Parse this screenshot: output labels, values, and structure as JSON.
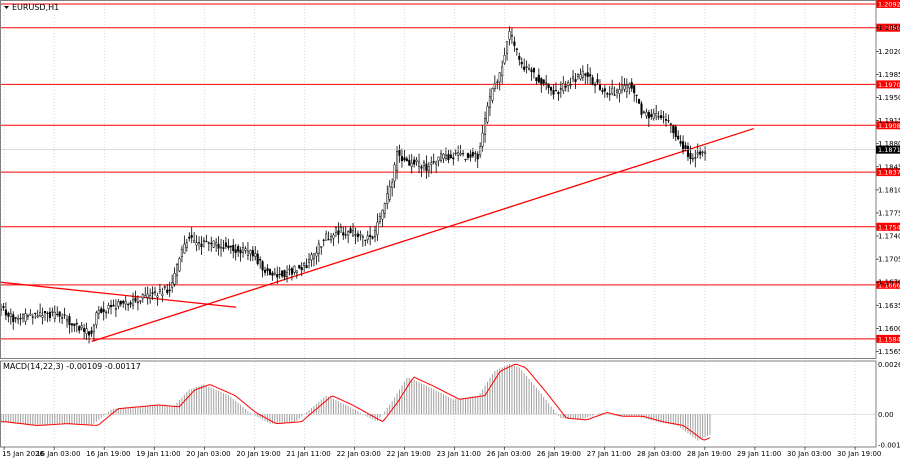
{
  "chart_data": {
    "type": "candlestick",
    "symbol_label": "EURUSD,H1",
    "colors": {
      "candle": "#000000",
      "level": "#ff0000",
      "level_label_bg": "#ff0000",
      "grid": "#c0c0c0",
      "macd_hist": "#a0a0a0",
      "macd_signal": "#ff0000",
      "current_bg": "#000000"
    },
    "price_axis": {
      "ylim": [
        1.1555,
        1.2098
      ],
      "ticks": [
        "1.2056",
        "1.2020",
        "1.1985",
        "1.1950",
        "1.1915",
        "1.1880",
        "1.1845",
        "1.1810",
        "1.1775",
        "1.1740",
        "1.1705",
        "1.1670",
        "1.1635",
        "1.1600",
        "1.1565"
      ]
    },
    "current_price": "1.1871",
    "levels": [
      "1.2092",
      "1.2056",
      "1.1970",
      "1.1908",
      "1.1837",
      "1.1754",
      "1.1666",
      "1.1584"
    ],
    "level_values": [
      1.2092,
      1.2056,
      1.197,
      1.1908,
      1.1837,
      1.1754,
      1.1666,
      1.1584
    ],
    "trend_lines": [
      {
        "x": [
          90,
          740
        ],
        "y": [
          1.158,
          1.1903
        ]
      },
      {
        "x": [
          0,
          232
        ],
        "y": [
          1.167,
          1.1632
        ]
      }
    ],
    "time_axis": {
      "labels": [
        "15 Jan 2026",
        "16 Jan 03:00",
        "16 Jan 19:00",
        "19 Jan 11:00",
        "20 Jan 03:00",
        "20 Jan 19:00",
        "21 Jan 11:00",
        "22 Jan 03:00",
        "22 Jan 19:00",
        "23 Jan 11:00",
        "26 Jan 03:00",
        "26 Jan 19:00",
        "27 Jan 11:00",
        "28 Jan 03:00",
        "28 Jan 19:00",
        "29 Jan 11:00",
        "30 Jan 03:00",
        "30 Jan 19:00"
      ],
      "range": [
        0,
        860
      ]
    },
    "price_path": {
      "x": [
        0,
        14,
        25,
        40,
        58,
        75,
        88,
        96,
        108,
        128,
        150,
        168,
        177,
        184,
        192,
        205,
        218,
        232,
        248,
        262,
        270,
        285,
        300,
        318,
        330,
        346,
        360,
        368,
        378,
        386,
        390,
        398,
        410,
        420,
        432,
        445,
        460,
        470,
        478,
        486,
        492,
        500,
        506,
        512,
        520,
        532,
        546,
        560,
        572,
        582,
        592,
        604,
        612,
        620,
        630,
        640,
        650,
        660,
        672,
        680,
        686,
        694
      ],
      "y": [
        1.1632,
        1.1612,
        1.1618,
        1.162,
        1.162,
        1.1605,
        1.159,
        1.1625,
        1.1632,
        1.164,
        1.165,
        1.1662,
        1.171,
        1.1737,
        1.173,
        1.1728,
        1.1725,
        1.172,
        1.1713,
        1.1685,
        1.168,
        1.1686,
        1.1695,
        1.1735,
        1.1748,
        1.1745,
        1.1735,
        1.1745,
        1.179,
        1.183,
        1.187,
        1.185,
        1.185,
        1.1843,
        1.186,
        1.1862,
        1.1862,
        1.186,
        1.193,
        1.1972,
        1.199,
        1.205,
        1.2025,
        1.1996,
        1.1993,
        1.197,
        1.1958,
        1.1975,
        1.1985,
        1.1975,
        1.196,
        1.1958,
        1.1965,
        1.1968,
        1.1928,
        1.1921,
        1.1925,
        1.1905,
        1.1872,
        1.1858,
        1.1864,
        1.1872
      ]
    },
    "macd": {
      "label": "MACD(14,22,3) -0.00109 -0.00117",
      "ylim": [
        -0.00175,
        0.0028
      ],
      "ticks": [
        "0.00267",
        "0.00",
        "-0.00164"
      ],
      "path": {
        "x": [
          0,
          30,
          60,
          90,
          110,
          130,
          150,
          170,
          185,
          200,
          225,
          245,
          265,
          290,
          305,
          320,
          340,
          370,
          385,
          400,
          420,
          445,
          470,
          485,
          500,
          510,
          530,
          550,
          570,
          590,
          605,
          625,
          645,
          665,
          685,
          697
        ],
        "y": [
          -0.0004,
          -0.0006,
          -0.0005,
          -0.0006,
          0.0003,
          0.0004,
          0.0005,
          0.0004,
          0.0013,
          0.0016,
          0.001,
          0.0001,
          -0.0005,
          -0.0004,
          0.0003,
          0.001,
          0.0005,
          -0.0004,
          0.0007,
          0.002,
          0.0015,
          0.0008,
          0.001,
          0.0023,
          0.0027,
          0.0025,
          0.0012,
          -0.0002,
          -0.0003,
          0.0001,
          -0.0001,
          -0.0001,
          -0.0004,
          -0.0006,
          -0.0014,
          -0.0011
        ]
      }
    }
  }
}
